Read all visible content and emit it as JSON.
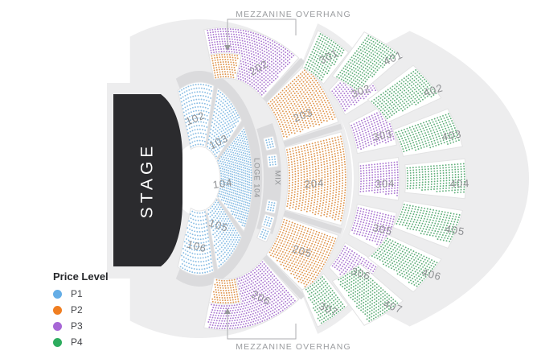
{
  "stage": {
    "label": "STAGE"
  },
  "annotations": {
    "overhang_top": "MEZZANINE OVERHANG",
    "overhang_bottom": "MEZZANINE OVERHANG"
  },
  "aisles": {
    "loge": "LOGE 104",
    "mix": "MIX"
  },
  "legend": {
    "title": "Price Level",
    "items": [
      {
        "id": "P1",
        "label": "P1",
        "color": "#64ADE6"
      },
      {
        "id": "P2",
        "label": "P2",
        "color": "#F07E21"
      },
      {
        "id": "P3",
        "label": "P3",
        "color": "#A767D6"
      },
      {
        "id": "P4",
        "label": "P4",
        "color": "#2DAC5E"
      }
    ]
  },
  "price_levels": {
    "P1": {
      "color": "#64ADE6",
      "dot_color": "#85BBE3"
    },
    "P2": {
      "color": "#F07E21",
      "dot_color": "#DD9148"
    },
    "P3": {
      "color": "#A767D6",
      "dot_color": "#A873CF"
    },
    "P4": {
      "color": "#2DAC5E",
      "dot_color": "#58AB74"
    }
  },
  "sections": [
    {
      "id": "102",
      "label": "102",
      "price_level": "P1"
    },
    {
      "id": "103",
      "label": "103",
      "price_level": "P1"
    },
    {
      "id": "104",
      "label": "104",
      "price_level": "P1"
    },
    {
      "id": "105",
      "label": "105",
      "price_level": "P1"
    },
    {
      "id": "106",
      "label": "106",
      "price_level": "P1"
    },
    {
      "id": "202",
      "label": "202",
      "price_level": "P3"
    },
    {
      "id": "202-front",
      "label": "",
      "price_level": "P2"
    },
    {
      "id": "203",
      "label": "203",
      "price_level": "P2"
    },
    {
      "id": "204",
      "label": "204",
      "price_level": "P2"
    },
    {
      "id": "205",
      "label": "205",
      "price_level": "P2"
    },
    {
      "id": "206",
      "label": "206",
      "price_level": "P3"
    },
    {
      "id": "206-front",
      "label": "",
      "price_level": "P2"
    },
    {
      "id": "301",
      "label": "301",
      "price_level": "P4"
    },
    {
      "id": "302",
      "label": "302",
      "price_level": "P3"
    },
    {
      "id": "303",
      "label": "303",
      "price_level": "P3"
    },
    {
      "id": "304",
      "label": "304",
      "price_level": "P3"
    },
    {
      "id": "305",
      "label": "305",
      "price_level": "P3"
    },
    {
      "id": "306",
      "label": "306",
      "price_level": "P3"
    },
    {
      "id": "307",
      "label": "307",
      "price_level": "P4"
    },
    {
      "id": "401",
      "label": "401",
      "price_level": "P4"
    },
    {
      "id": "402",
      "label": "402",
      "price_level": "P4"
    },
    {
      "id": "403",
      "label": "403",
      "price_level": "P4"
    },
    {
      "id": "404",
      "label": "404",
      "price_level": "P4"
    },
    {
      "id": "405",
      "label": "405",
      "price_level": "P4"
    },
    {
      "id": "406",
      "label": "406",
      "price_level": "P4"
    },
    {
      "id": "407",
      "label": "407",
      "price_level": "P4"
    },
    {
      "id": "loge-box-1",
      "label": "",
      "price_level": "P1"
    },
    {
      "id": "loge-box-2",
      "label": "",
      "price_level": "P1"
    },
    {
      "id": "loge-box-3",
      "label": "",
      "price_level": "P1"
    },
    {
      "id": "loge-box-4",
      "label": "",
      "price_level": "P1"
    },
    {
      "id": "loge-box-5",
      "label": "",
      "price_level": "P1"
    }
  ]
}
